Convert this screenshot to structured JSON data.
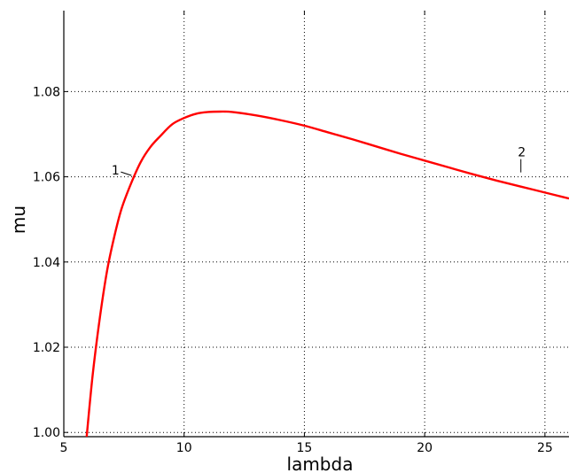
{
  "chart_data": {
    "type": "line",
    "title": "",
    "xlabel": "lambda",
    "ylabel": "mu",
    "xlim": [
      5,
      26
    ],
    "ylim": [
      0.999,
      1.099
    ],
    "xticks": [
      5,
      10,
      15,
      20,
      25
    ],
    "xtick_labels": [
      "5",
      "10",
      "15",
      "20",
      "25"
    ],
    "yticks": [
      1.0,
      1.02,
      1.04,
      1.06,
      1.08
    ],
    "ytick_labels": [
      "1.00",
      "1.02",
      "1.04",
      "1.06",
      "1.08"
    ],
    "grid": true,
    "series": [
      {
        "color": "#ff0000",
        "x": [
          5.95,
          6.2,
          6.5,
          6.8,
          7.1,
          7.4,
          7.8,
          8.2,
          8.6,
          9.0,
          9.5,
          10.0,
          10.5,
          11.0,
          11.5,
          12.0,
          13.0,
          14.0,
          15.0,
          16.0,
          17.0,
          18.0,
          19.0,
          20.0,
          21.0,
          22.0,
          23.0,
          24.0,
          25.0,
          26.0
        ],
        "y": [
          0.999,
          1.0135,
          1.027,
          1.038,
          1.046,
          1.0525,
          1.0585,
          1.0635,
          1.067,
          1.0695,
          1.0723,
          1.0738,
          1.0748,
          1.0752,
          1.0753,
          1.0752,
          1.0744,
          1.0733,
          1.072,
          1.0704,
          1.0688,
          1.0671,
          1.0654,
          1.0638,
          1.0622,
          1.0606,
          1.0591,
          1.0577,
          1.0563,
          1.0549
        ]
      }
    ],
    "annotations": [
      {
        "text": "1",
        "x": 7.85,
        "y": 1.0603
      },
      {
        "text": "2",
        "x": 24.0,
        "y": 1.0604
      }
    ]
  }
}
